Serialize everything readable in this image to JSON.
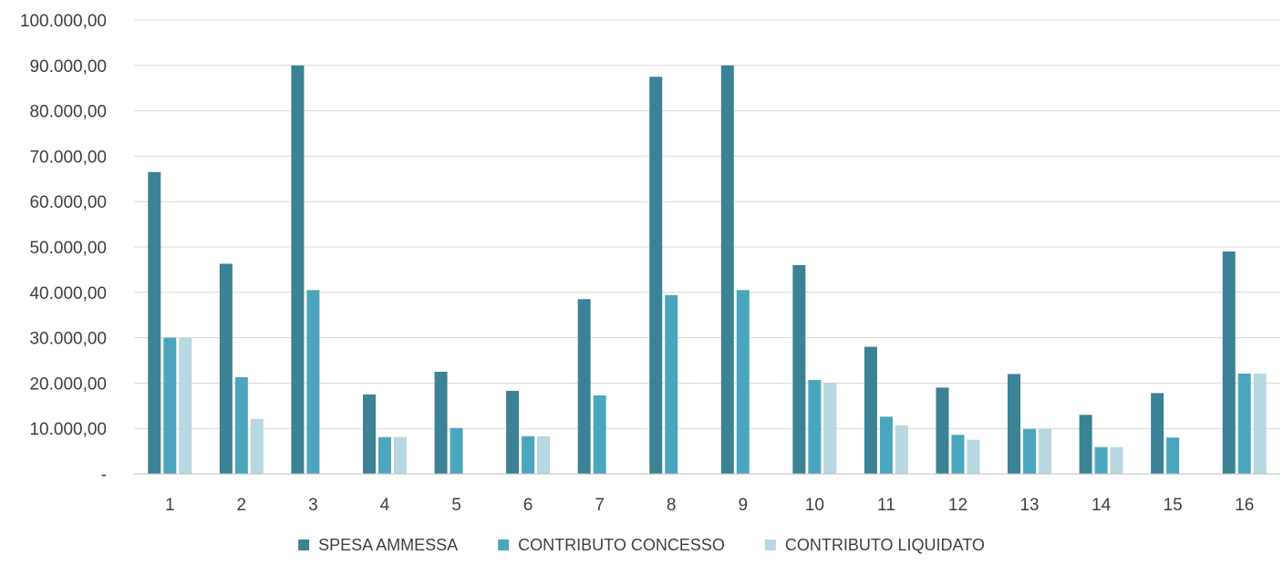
{
  "chart_data": {
    "type": "bar",
    "title": "",
    "xlabel": "",
    "ylabel": "",
    "ylim": [
      0,
      100000
    ],
    "y_tick_labels": [
      "-",
      "10.000,00",
      "20.000,00",
      "30.000,00",
      "40.000,00",
      "50.000,00",
      "60.000,00",
      "70.000,00",
      "80.000,00",
      "90.000,00",
      "100.000,00"
    ],
    "y_tick_values": [
      0,
      10000,
      20000,
      30000,
      40000,
      50000,
      60000,
      70000,
      80000,
      90000,
      100000
    ],
    "categories": [
      "1",
      "2",
      "3",
      "4",
      "5",
      "6",
      "7",
      "8",
      "9",
      "10",
      "11",
      "12",
      "13",
      "14",
      "15",
      "16"
    ],
    "grid": true,
    "legend_position": "bottom",
    "series": [
      {
        "name": "SPESA AMMESSA",
        "color": "#3a8294",
        "values": [
          66500,
          46300,
          90000,
          17500,
          22500,
          18300,
          38500,
          87500,
          90000,
          46000,
          28000,
          19000,
          22000,
          13000,
          17800,
          49000
        ]
      },
      {
        "name": "CONTRIBUTO CONCESSO",
        "color": "#4ba6bd",
        "values": [
          30000,
          21300,
          40500,
          8100,
          10100,
          8300,
          17300,
          39400,
          40500,
          20700,
          12600,
          8600,
          9900,
          5900,
          8000,
          22100
        ]
      },
      {
        "name": "CONTRIBUTO LIQUIDATO",
        "color": "#b7d7e1",
        "values": [
          30000,
          12100,
          0,
          8100,
          0,
          8300,
          0,
          0,
          0,
          20100,
          10700,
          7500,
          9900,
          5900,
          0,
          22100
        ]
      }
    ]
  }
}
